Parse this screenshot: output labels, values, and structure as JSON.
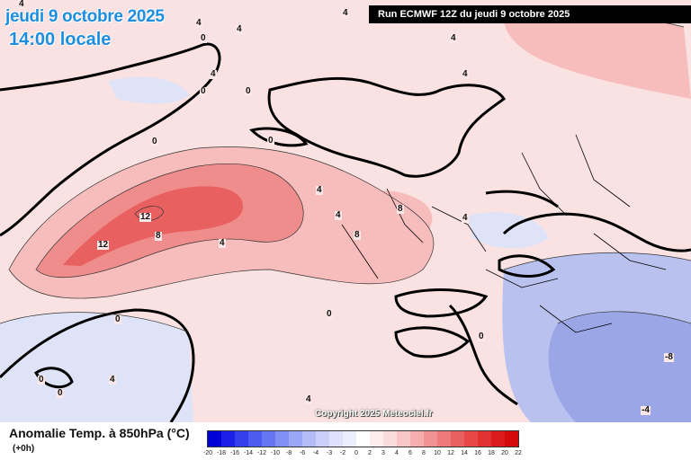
{
  "header": {
    "date": "jeudi 9 octobre 2025",
    "time": "14:00 locale",
    "run": "Run ECMWF 12Z du jeudi 9 octobre 2025"
  },
  "map": {
    "copyright": "Copyright 2025 Meteociel.fr",
    "contour_labels": [
      "4",
      "0",
      "4",
      "4",
      "4",
      "0",
      "0",
      "0",
      "0",
      "4",
      "4",
      "4",
      "12",
      "12",
      "8",
      "8",
      "8",
      "4",
      "4",
      "4",
      "0",
      "0",
      "0",
      "4",
      "0",
      "0",
      "4",
      "4",
      "-8",
      "-4"
    ],
    "colors": {
      "warm_light": "#fbe2e2",
      "warm_mid": "#f7bcbc",
      "warm_strong": "#ef8c8c",
      "warm_core": "#e86060",
      "cool_light": "#dfe3f7",
      "cool_mid": "#b9c2ef",
      "cool_strong": "#9aa6e6",
      "coast": "#000000"
    }
  },
  "legend": {
    "title": "Anomalie Temp. à 850hPa (°C)",
    "step": "(+0h)",
    "ticks": [
      "-20",
      "-18",
      "-16",
      "-14",
      "-12",
      "-10",
      "-8",
      "-6",
      "-4",
      "-3",
      "-2",
      "0",
      "2",
      "3",
      "4",
      "6",
      "8",
      "10",
      "12",
      "14",
      "16",
      "18",
      "20",
      "22"
    ],
    "swatch_colors": [
      "#0000d8",
      "#1c20e6",
      "#3440ec",
      "#4c5cf0",
      "#6676f2",
      "#8090f4",
      "#9aa6f6",
      "#b4bcf8",
      "#cad0fa",
      "#dde1fc",
      "#eceefd",
      "#ffffff",
      "#fdeded",
      "#fbdcdc",
      "#f8c6c6",
      "#f5adad",
      "#f19393",
      "#ee7a7a",
      "#ea6060",
      "#e64848",
      "#e23232",
      "#dc1c1c",
      "#d40a0a"
    ]
  }
}
